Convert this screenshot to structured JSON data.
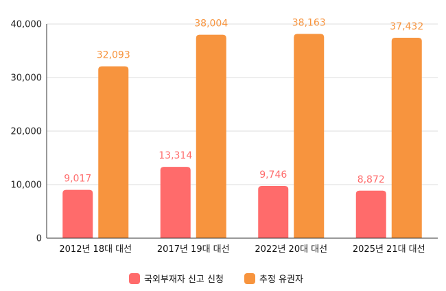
{
  "chart_data": {
    "type": "bar",
    "categories": [
      "2012년 18대 대선",
      "2017년 19대 대선",
      "2022년 20대 대선",
      "2025년 21대 대선"
    ],
    "series": [
      {
        "name": "국외부재자 신고 신청",
        "values": [
          9017,
          13314,
          9746,
          8872
        ],
        "labels": [
          "9,017",
          "13,314",
          "9,746",
          "8,872"
        ],
        "color": "#ff6b6b"
      },
      {
        "name": "추정 유권자",
        "values": [
          32093,
          38004,
          38163,
          37432
        ],
        "labels": [
          "32,093",
          "38,004",
          "38,163",
          "37,432"
        ],
        "color": "#f7943e"
      }
    ],
    "ylim": [
      0,
      40000
    ],
    "yticks": [
      0,
      10000,
      20000,
      30000,
      40000
    ],
    "ytick_labels": [
      "0",
      "10,000",
      "20,000",
      "30,000",
      "40,000"
    ],
    "grid": true,
    "legend": "bottom"
  }
}
